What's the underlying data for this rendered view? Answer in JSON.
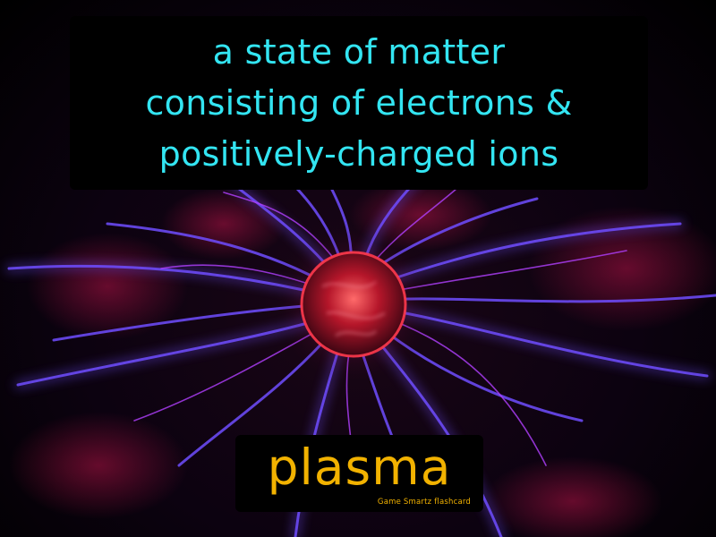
{
  "flashcard": {
    "definition_lines": [
      "a state of matter",
      "consisting of electrons &",
      "positively-charged ions"
    ],
    "term": "plasma",
    "brand": "Game  Smartz  flashcard"
  },
  "colors": {
    "definition_text": "#33e5f2",
    "term_text": "#f2b200",
    "brand_text": "#f2b200",
    "filament_blue": "#6f4dff",
    "filament_violet": "#b140ff",
    "core_red": "#ff3a4c",
    "glow_magenta": "#c0144a"
  },
  "image": {
    "subject": "plasma-ball-photograph"
  }
}
